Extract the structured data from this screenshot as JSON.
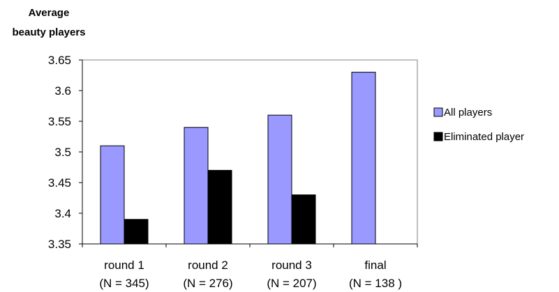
{
  "chart_data": {
    "type": "bar",
    "ylabel_lines": [
      "Average",
      "beauty players"
    ],
    "categories": [
      "round 1",
      "round 2",
      "round 3",
      "final"
    ],
    "category_sublabels": [
      "(N = 345)",
      "(N = 276)",
      "(N = 207)",
      "(N = 138 )"
    ],
    "series": [
      {
        "name": "All players",
        "color": "#9999ff",
        "values": [
          3.51,
          3.54,
          3.56,
          3.63
        ]
      },
      {
        "name": "Eliminated player",
        "color": "#000000",
        "values": [
          3.39,
          3.47,
          3.43,
          null
        ]
      }
    ],
    "ylim": [
      3.35,
      3.65
    ],
    "yticks": [
      "3.35",
      "3.4",
      "3.45",
      "3.5",
      "3.55",
      "3.6",
      "3.65"
    ],
    "grid": false,
    "legend": "right"
  }
}
